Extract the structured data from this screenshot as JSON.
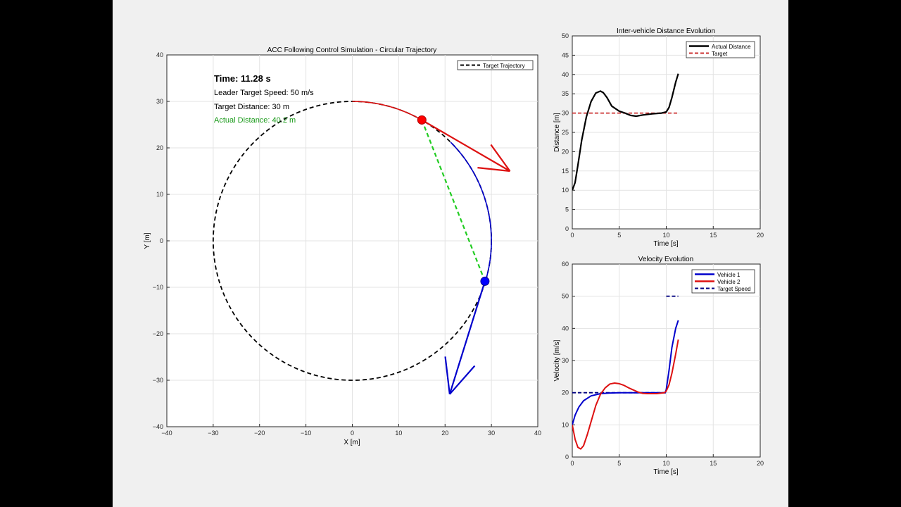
{
  "colors": {
    "target": "#000000",
    "vehicle1": "#0000cc",
    "vehicle2": "#dd1111",
    "link": "#22cc22",
    "target_line": "#cc3333",
    "target_speed": "#000080",
    "actual_distance_text": "#1a9a1a"
  },
  "main": {
    "title": "ACC Following Control Simulation - Circular Trajectory",
    "xlabel": "X [m]",
    "ylabel": "Y [m]",
    "legend": [
      "Target Trajectory"
    ],
    "info": {
      "time": "Time: 11.28 s",
      "leader_speed": "Leader Target Speed: 50 m/s",
      "target_distance": "Target Distance: 30 m",
      "actual_distance": "Actual Distance: 40.2 m"
    }
  },
  "chart_data": [
    {
      "type": "line",
      "title": "ACC Following Control Simulation - Circular Trajectory",
      "xlabel": "X [m]",
      "ylabel": "Y [m]",
      "xlim": [
        -40,
        40
      ],
      "ylim": [
        -40,
        40
      ],
      "xticks": [
        -40,
        -30,
        -20,
        -10,
        0,
        10,
        20,
        30,
        40
      ],
      "yticks": [
        -40,
        -30,
        -20,
        -10,
        0,
        10,
        20,
        30,
        40
      ],
      "grid": true,
      "legend_position": "top-right",
      "series": [
        {
          "name": "Target Trajectory",
          "shape": "circle",
          "center": [
            0,
            0
          ],
          "radius": 30,
          "style": "dashed"
        }
      ],
      "leader": {
        "x": 15,
        "y": 26,
        "velocity_arrow_end": [
          34,
          15
        ]
      },
      "follower": {
        "x": 28.6,
        "y": -8.7,
        "velocity_arrow_end": [
          21,
          -33
        ]
      },
      "leader_path_angles_deg": [
        90,
        60
      ],
      "follower_path_angles_deg": [
        45,
        -16.9
      ]
    },
    {
      "type": "line",
      "title": "Inter-vehicle Distance Evolution",
      "xlabel": "Time [s]",
      "ylabel": "Distance [m]",
      "xlim": [
        0,
        20
      ],
      "ylim": [
        0,
        50
      ],
      "xticks": [
        0,
        5,
        10,
        15,
        20
      ],
      "yticks": [
        0,
        5,
        10,
        15,
        20,
        25,
        30,
        35,
        40,
        45,
        50
      ],
      "grid": true,
      "legend_position": "top-right",
      "series": [
        {
          "name": "Actual Distance",
          "style": "solid",
          "x": [
            0,
            0.3,
            0.6,
            1.0,
            1.5,
            2.0,
            2.5,
            3.0,
            3.3,
            3.7,
            4.2,
            5.0,
            5.6,
            6.2,
            6.8,
            7.5,
            8.5,
            9.5,
            10.0,
            10.3,
            10.6,
            11.0,
            11.28
          ],
          "y": [
            10,
            12,
            16.5,
            23,
            29,
            33,
            35.2,
            35.7,
            35.3,
            34,
            31.8,
            30.5,
            30,
            29.4,
            29.2,
            29.5,
            29.8,
            30,
            30.3,
            31.5,
            34,
            38,
            40.2
          ]
        },
        {
          "name": "Target",
          "style": "dashed",
          "x": [
            0,
            11.28
          ],
          "y": [
            30,
            30
          ]
        }
      ]
    },
    {
      "type": "line",
      "title": "Velocity Evolution",
      "xlabel": "Time [s]",
      "ylabel": "Velocity [m/s]",
      "xlim": [
        0,
        20
      ],
      "ylim": [
        0,
        60
      ],
      "xticks": [
        0,
        5,
        10,
        15,
        20
      ],
      "yticks": [
        0,
        10,
        20,
        30,
        40,
        50,
        60
      ],
      "grid": true,
      "legend_position": "top-right",
      "series": [
        {
          "name": "Vehicle 1",
          "style": "solid",
          "x": [
            0,
            0.3,
            0.7,
            1.2,
            2.0,
            3.0,
            4.0,
            5.0,
            6.0,
            8.0,
            9.9,
            10.0,
            10.3,
            10.6,
            11.0,
            11.28
          ],
          "y": [
            10,
            13,
            15.5,
            17.5,
            19,
            19.7,
            19.9,
            20,
            20,
            20,
            20,
            21,
            27,
            34,
            40,
            42.5
          ]
        },
        {
          "name": "Vehicle 2",
          "style": "solid",
          "x": [
            0,
            0.3,
            0.6,
            0.9,
            1.2,
            1.6,
            2.0,
            2.5,
            3.0,
            3.5,
            4.0,
            4.5,
            5.0,
            5.5,
            6.0,
            7.0,
            7.5,
            8.0,
            9.0,
            9.8,
            10.0,
            10.3,
            10.6,
            11.0,
            11.28
          ],
          "y": [
            10,
            5.5,
            3,
            2.5,
            3.5,
            7,
            11,
            16,
            19.5,
            21.5,
            22.7,
            23,
            22.8,
            22.3,
            21.5,
            20.2,
            19.8,
            19.7,
            19.7,
            20,
            20.5,
            22.5,
            26,
            32,
            36.5
          ]
        },
        {
          "name": "Target Speed",
          "style": "dashed",
          "segments": [
            {
              "x": [
                0,
                10
              ],
              "y": [
                20,
                20
              ]
            },
            {
              "x": [
                10,
                11.28
              ],
              "y": [
                50,
                50
              ]
            }
          ]
        }
      ]
    }
  ]
}
